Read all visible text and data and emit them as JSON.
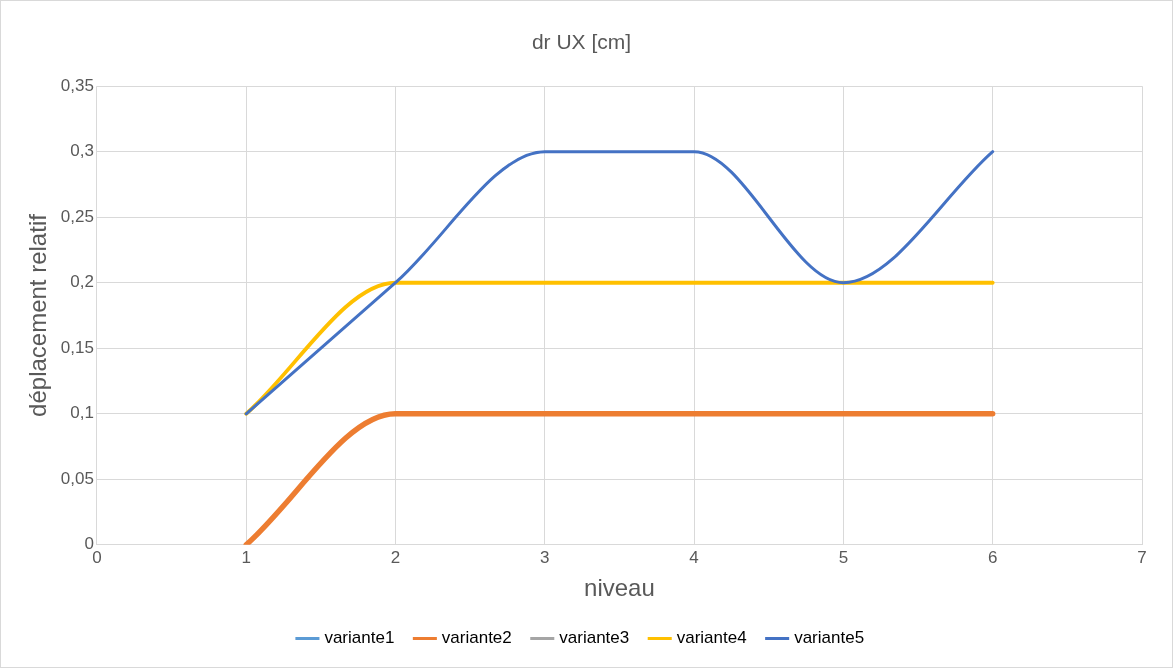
{
  "chart_data": {
    "type": "line",
    "title": "dr UX [cm]",
    "xlabel": "niveau",
    "ylabel": "déplacement relatif",
    "x": [
      1,
      2,
      3,
      4,
      5,
      6
    ],
    "series": [
      {
        "name": "variante1",
        "color": "#5b9bd5",
        "values": [
          null,
          null,
          null,
          null,
          null,
          null
        ]
      },
      {
        "name": "variante2",
        "color": "#ed7d31",
        "values": [
          0,
          0.1,
          0.1,
          0.1,
          0.1,
          0.1
        ]
      },
      {
        "name": "variante3",
        "color": "#a5a5a5",
        "values": [
          null,
          null,
          null,
          null,
          null,
          null
        ]
      },
      {
        "name": "variante4",
        "color": "#ffc000",
        "values": [
          0.1,
          0.2,
          0.2,
          0.2,
          0.2,
          0.2
        ]
      },
      {
        "name": "variante5",
        "color": "#4472c4",
        "values": [
          0.1,
          0.2,
          0.3,
          0.3,
          0.2,
          0.3
        ]
      }
    ],
    "xlim": [
      0,
      7
    ],
    "xticks": [
      0,
      1,
      2,
      3,
      4,
      5,
      6,
      7
    ],
    "ylim": [
      0,
      0.35
    ],
    "yticks": [
      0,
      {
        "value": 0.05,
        "label": "0,05"
      },
      {
        "value": 0.1,
        "label": "0,1"
      },
      {
        "value": 0.15,
        "label": "0,15"
      },
      {
        "value": 0.2,
        "label": "0,2"
      },
      {
        "value": 0.25,
        "label": "0,25"
      },
      {
        "value": 0.3,
        "label": "0,3"
      },
      {
        "value": 0.35,
        "label": "0,35"
      }
    ],
    "grid": true,
    "legend": "bottom",
    "marker": "none",
    "line_style": "solid"
  }
}
